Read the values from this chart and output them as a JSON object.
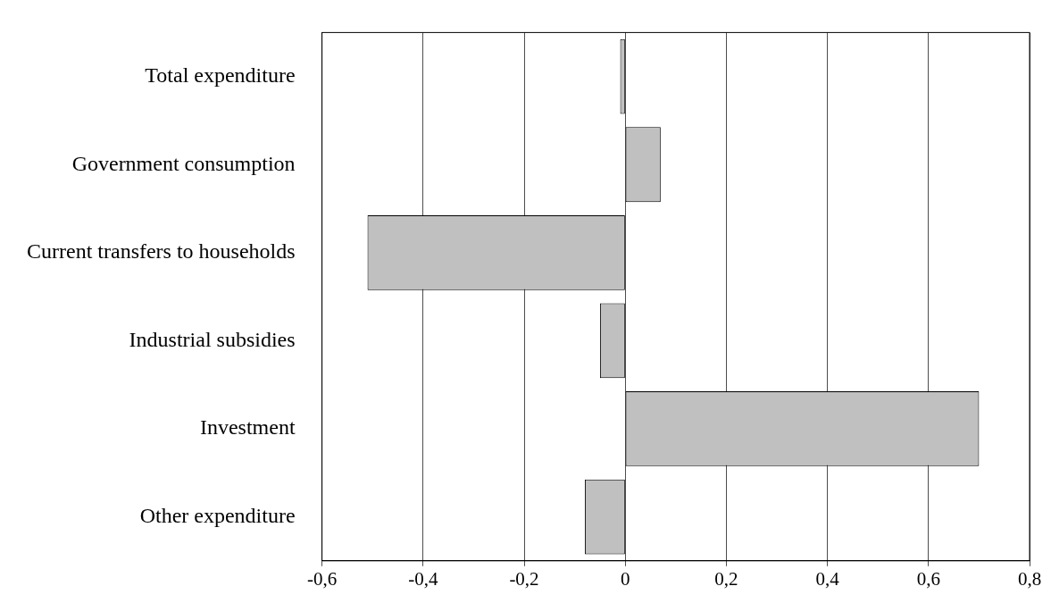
{
  "chart_data": {
    "type": "bar",
    "orientation": "horizontal",
    "categories": [
      "Total expenditure",
      "Government consumption",
      "Current transfers to households",
      "Industrial subsidies",
      "Investment",
      "Other expenditure"
    ],
    "values": [
      -0.01,
      0.07,
      -0.51,
      -0.05,
      0.7,
      -0.08
    ],
    "color": "#c0c0c0",
    "xlim": [
      -0.6,
      0.8
    ],
    "xticks": [
      {
        "value": -0.6,
        "label": "-0,6"
      },
      {
        "value": -0.4,
        "label": "-0,4"
      },
      {
        "value": -0.2,
        "label": "-0,2"
      },
      0,
      {
        "value": 0.2,
        "label": "0,2"
      },
      {
        "value": 0.4,
        "label": "0,4"
      },
      {
        "value": 0.6,
        "label": "0,6"
      },
      {
        "value": 0.8,
        "label": "0,8"
      }
    ],
    "grid": "x",
    "legend": false
  }
}
